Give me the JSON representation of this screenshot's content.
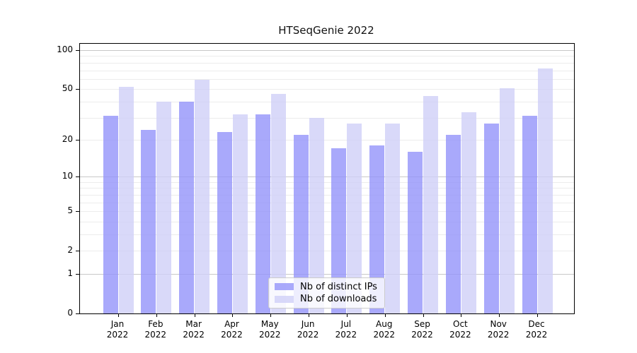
{
  "figure": {
    "background": "#ffffff",
    "frame_color": "#000000"
  },
  "chart_data": {
    "type": "bar",
    "title": "HTSeqGenie 2022",
    "categories": [
      "Jan 2022",
      "Feb 2022",
      "Mar 2022",
      "Apr 2022",
      "May 2022",
      "Jun 2022",
      "Jul 2022",
      "Aug 2022",
      "Sep 2022",
      "Oct 2022",
      "Nov 2022",
      "Dec 2022"
    ],
    "series": [
      {
        "name": "Nb of distinct IPs",
        "color": "#9494fa",
        "alpha": 0.8,
        "values": [
          31,
          24,
          40,
          23,
          32,
          22,
          17,
          18,
          16,
          22,
          27,
          31
        ]
      },
      {
        "name": "Nb of downloads",
        "color": "#d0d0f7",
        "alpha": 0.8,
        "values": [
          52,
          40,
          59,
          32,
          46,
          30,
          27,
          27,
          44,
          33,
          51,
          72
        ]
      }
    ],
    "xlabel": "",
    "ylabel": "",
    "yscale": "log1p",
    "ylim": [
      0,
      112
    ],
    "yticks": [
      0,
      1,
      2,
      5,
      10,
      20,
      50,
      100
    ],
    "grid": {
      "on": true,
      "major_lines": [
        1,
        10,
        100
      ],
      "minor_lines": [
        2,
        3,
        4,
        5,
        6,
        7,
        8,
        9,
        20,
        30,
        40,
        50,
        60,
        70,
        80,
        90
      ],
      "major_color": "#c8c8c8",
      "minor_color": "#ececec"
    },
    "legend": {
      "position": "lower center",
      "entries": [
        "Nb of distinct IPs",
        "Nb of downloads"
      ]
    }
  }
}
